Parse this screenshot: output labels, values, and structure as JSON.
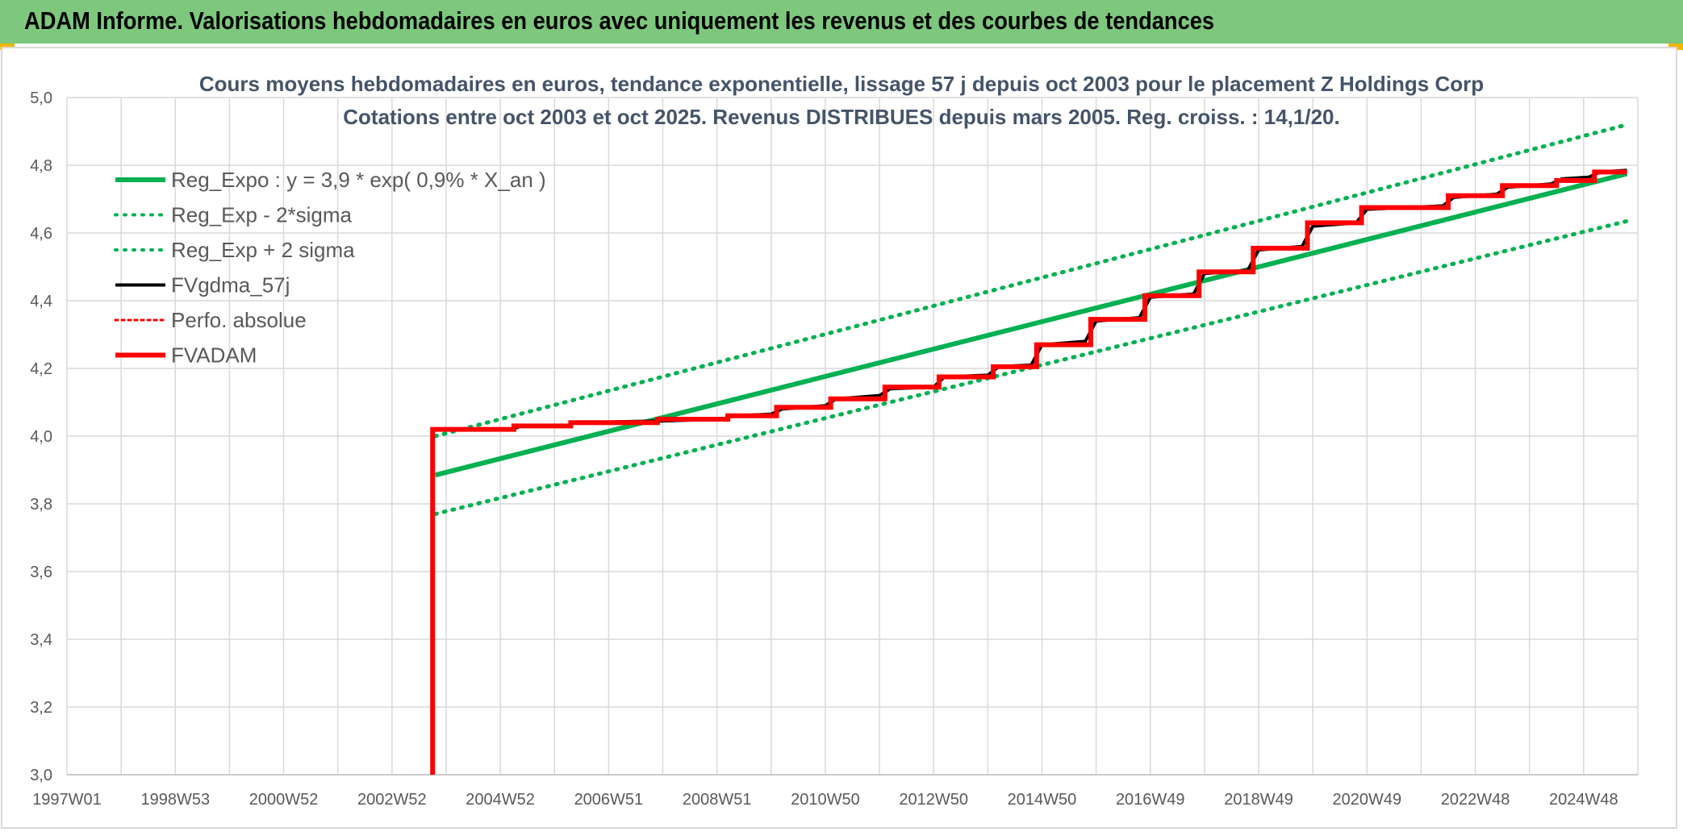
{
  "header": {
    "title": "ADAM Informe. Valorisations hebdomadaires en euros avec uniquement les revenus et des courbes de tendances"
  },
  "colors": {
    "banner": "#7dc87d",
    "regression": "#00b050",
    "smoothed": "#000000",
    "fvadam": "#ff0000",
    "perf": "#ff0000"
  },
  "chart_data": {
    "type": "line",
    "title": "Cours moyens hebdomadaires en euros, tendance exponentielle, lissage 57 j depuis oct 2003 pour le placement Z Holdings Corp",
    "subtitle": "Cotations entre oct 2003 et oct 2025. Revenus DISTRIBUES depuis mars 2005. Reg. croiss. : 14,1/20.",
    "x_tick_labels": [
      "1997W01",
      "1998W53",
      "2000W52",
      "2002W52",
      "2004W52",
      "2006W51",
      "2008W51",
      "2010W50",
      "2012W50",
      "2014W50",
      "2016W49",
      "2018W49",
      "2020W49",
      "2022W48",
      "2024W48"
    ],
    "x_range": [
      1997.0,
      2026.0
    ],
    "ylim": [
      3.0,
      5.0
    ],
    "y_ticks": [
      "3,0",
      "3,2",
      "3,4",
      "3,6",
      "3,8",
      "4,0",
      "4,2",
      "4,4",
      "4,6",
      "4,8",
      "5,0"
    ],
    "grid": true,
    "legend_position": "top-left",
    "series": [
      {
        "name": "Reg_Expo : y = 3,9 * exp( 0,9% *  X_an )",
        "style": "solid-green",
        "x": [
          2003.8,
          2025.8
        ],
        "y": [
          3.885,
          4.775
        ]
      },
      {
        "name": "Reg_Exp - 2*sigma",
        "style": "dotted-green",
        "x": [
          2003.8,
          2025.8
        ],
        "y": [
          3.77,
          4.635
        ]
      },
      {
        "name": "Reg_Exp + 2 sigma",
        "style": "dotted-green",
        "x": [
          2003.8,
          2025.8
        ],
        "y": [
          4.0,
          4.92
        ]
      },
      {
        "name": "FVgdma_57j",
        "style": "solid-black",
        "x": [
          2003.8,
          2005.2,
          2005.4,
          2006.2,
          2006.4,
          2008.0,
          2009.1,
          2009.3,
          2010.0,
          2010.2,
          2011.0,
          2011.2,
          2012.0,
          2012.2,
          2013.0,
          2013.2,
          2014.0,
          2014.2,
          2014.8,
          2015.0,
          2015.8,
          2016.0,
          2016.8,
          2017.0,
          2017.8,
          2018.0,
          2018.8,
          2019.0,
          2019.8,
          2020.0,
          2020.8,
          2021.0,
          2022.4,
          2022.6,
          2023.4,
          2023.6,
          2024.4,
          2024.6,
          2025.1,
          2025.3,
          2025.8
        ],
        "y": [
          4.02,
          4.02,
          4.03,
          4.03,
          4.04,
          4.045,
          4.05,
          4.06,
          4.065,
          4.08,
          4.09,
          4.11,
          4.12,
          4.14,
          4.145,
          4.175,
          4.18,
          4.205,
          4.21,
          4.27,
          4.28,
          4.34,
          4.35,
          4.41,
          4.42,
          4.48,
          4.49,
          4.55,
          4.56,
          4.62,
          4.63,
          4.67,
          4.68,
          4.705,
          4.715,
          4.735,
          4.745,
          4.76,
          4.765,
          4.78,
          4.785
        ]
      },
      {
        "name": "Perfo. absolue",
        "style": "dotted-red",
        "x": [],
        "y": []
      },
      {
        "name": "FVADAM",
        "style": "solid-red",
        "x": [
          2003.75,
          2003.75,
          2005.25,
          2005.25,
          2006.3,
          2006.3,
          2007.9,
          2007.9,
          2009.2,
          2009.2,
          2010.1,
          2010.1,
          2011.1,
          2011.1,
          2012.1,
          2012.1,
          2013.1,
          2013.1,
          2014.1,
          2014.1,
          2014.9,
          2014.9,
          2015.9,
          2015.9,
          2016.9,
          2016.9,
          2017.9,
          2017.9,
          2018.9,
          2018.9,
          2019.9,
          2019.9,
          2020.9,
          2020.9,
          2022.5,
          2022.5,
          2023.5,
          2023.5,
          2024.5,
          2024.5,
          2025.2,
          2025.2,
          2025.8
        ],
        "y": [
          3.0,
          4.02,
          4.02,
          4.03,
          4.03,
          4.04,
          4.04,
          4.05,
          4.05,
          4.06,
          4.06,
          4.085,
          4.085,
          4.11,
          4.11,
          4.145,
          4.145,
          4.175,
          4.175,
          4.205,
          4.205,
          4.27,
          4.27,
          4.345,
          4.345,
          4.415,
          4.415,
          4.485,
          4.485,
          4.555,
          4.555,
          4.63,
          4.63,
          4.675,
          4.675,
          4.71,
          4.71,
          4.74,
          4.74,
          4.755,
          4.755,
          4.78,
          4.78
        ]
      }
    ]
  }
}
